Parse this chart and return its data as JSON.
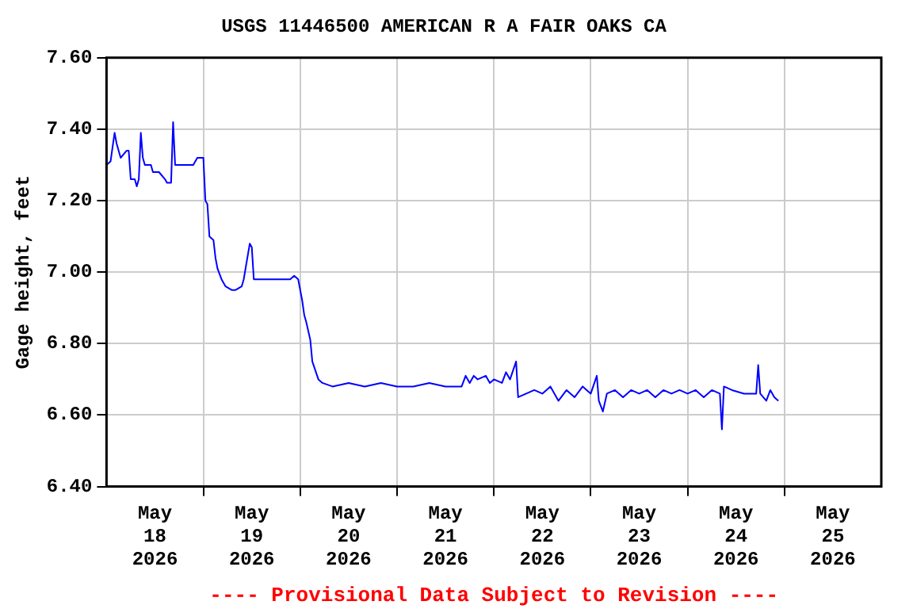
{
  "chart_data": {
    "type": "line",
    "title": "USGS 11446500 AMERICAN R A FAIR OAKS CA",
    "ylabel": "Gage height, feet",
    "annotations": [
      "---- Provisional Data Subject to Revision ----"
    ],
    "x": [
      "2026-05-18T00:00",
      "2026-05-18T01:00",
      "2026-05-18T02:00",
      "2026-05-18T02:30",
      "2026-05-18T03:30",
      "2026-05-18T05:00",
      "2026-05-18T05:30",
      "2026-05-18T06:00",
      "2026-05-18T07:00",
      "2026-05-18T07:30",
      "2026-05-18T08:00",
      "2026-05-18T08:30",
      "2026-05-18T09:00",
      "2026-05-18T09:30",
      "2026-05-18T11:00",
      "2026-05-18T11:30",
      "2026-05-18T13:00",
      "2026-05-18T14:30",
      "2026-05-18T15:00",
      "2026-05-18T16:00",
      "2026-05-18T16:30",
      "2026-05-18T17:00",
      "2026-05-18T18:00",
      "2026-05-18T21:30",
      "2026-05-18T22:30",
      "2026-05-19T00:00",
      "2026-05-19T00:30",
      "2026-05-19T01:00",
      "2026-05-19T01:30",
      "2026-05-19T02:30",
      "2026-05-19T03:00",
      "2026-05-19T03:30",
      "2026-05-19T04:30",
      "2026-05-19T05:30",
      "2026-05-19T07:00",
      "2026-05-19T08:00",
      "2026-05-19T09:30",
      "2026-05-19T10:00",
      "2026-05-19T11:30",
      "2026-05-19T12:00",
      "2026-05-19T12:30",
      "2026-05-19T21:30",
      "2026-05-19T22:30",
      "2026-05-19T23:30",
      "2026-05-20T00:30",
      "2026-05-20T01:00",
      "2026-05-20T01:30",
      "2026-05-20T02:30",
      "2026-05-20T03:00",
      "2026-05-20T04:30",
      "2026-05-20T05:30",
      "2026-05-20T08:00",
      "2026-05-20T12:00",
      "2026-05-20T16:00",
      "2026-05-20T20:00",
      "2026-05-21T00:00",
      "2026-05-21T04:00",
      "2026-05-21T08:00",
      "2026-05-21T12:00",
      "2026-05-21T16:00",
      "2026-05-21T17:00",
      "2026-05-21T18:00",
      "2026-05-21T19:00",
      "2026-05-21T20:00",
      "2026-05-21T22:00",
      "2026-05-21T23:00",
      "2026-05-22T00:00",
      "2026-05-22T02:00",
      "2026-05-22T03:00",
      "2026-05-22T04:00",
      "2026-05-22T05:30",
      "2026-05-22T06:00",
      "2026-05-22T08:00",
      "2026-05-22T10:00",
      "2026-05-22T12:00",
      "2026-05-22T14:00",
      "2026-05-22T16:00",
      "2026-05-22T18:00",
      "2026-05-22T20:00",
      "2026-05-22T22:00",
      "2026-05-23T00:00",
      "2026-05-23T01:30",
      "2026-05-23T02:00",
      "2026-05-23T03:00",
      "2026-05-23T04:00",
      "2026-05-23T06:00",
      "2026-05-23T08:00",
      "2026-05-23T10:00",
      "2026-05-23T12:00",
      "2026-05-23T14:00",
      "2026-05-23T16:00",
      "2026-05-23T18:00",
      "2026-05-23T20:00",
      "2026-05-23T22:00",
      "2026-05-24T00:00",
      "2026-05-24T02:00",
      "2026-05-24T04:00",
      "2026-05-24T06:00",
      "2026-05-24T08:00",
      "2026-05-24T08:30",
      "2026-05-24T09:00",
      "2026-05-24T11:00",
      "2026-05-24T14:00",
      "2026-05-24T17:00",
      "2026-05-24T17:30",
      "2026-05-24T18:00",
      "2026-05-24T19:30",
      "2026-05-24T20:30",
      "2026-05-24T21:30",
      "2026-05-24T22:30"
    ],
    "series": [
      {
        "color": "#0000ff",
        "values": [
          7.3,
          7.31,
          7.39,
          7.36,
          7.32,
          7.34,
          7.34,
          7.26,
          7.26,
          7.24,
          7.26,
          7.39,
          7.32,
          7.3,
          7.3,
          7.28,
          7.28,
          7.26,
          7.25,
          7.25,
          7.42,
          7.3,
          7.3,
          7.3,
          7.32,
          7.32,
          7.2,
          7.19,
          7.1,
          7.09,
          7.04,
          7.01,
          6.98,
          6.96,
          6.95,
          6.95,
          6.96,
          6.98,
          7.08,
          7.07,
          6.98,
          6.98,
          6.99,
          6.98,
          6.92,
          6.88,
          6.86,
          6.81,
          6.75,
          6.7,
          6.69,
          6.68,
          6.69,
          6.68,
          6.69,
          6.68,
          6.68,
          6.69,
          6.68,
          6.68,
          6.71,
          6.69,
          6.71,
          6.7,
          6.71,
          6.69,
          6.7,
          6.69,
          6.72,
          6.7,
          6.75,
          6.65,
          6.66,
          6.67,
          6.66,
          6.68,
          6.64,
          6.67,
          6.65,
          6.68,
          6.66,
          6.71,
          6.64,
          6.61,
          6.66,
          6.67,
          6.65,
          6.67,
          6.66,
          6.67,
          6.65,
          6.67,
          6.66,
          6.67,
          6.66,
          6.67,
          6.65,
          6.67,
          6.66,
          6.56,
          6.68,
          6.67,
          6.66,
          6.66,
          6.74,
          6.66,
          6.64,
          6.67,
          6.65,
          6.64
        ]
      }
    ],
    "xlim": [
      "2026-05-18T00:00",
      "2026-05-26T00:00"
    ],
    "xticks": [
      {
        "value": "2026-05-18T12:00",
        "label": "May 18 2026"
      },
      {
        "value": "2026-05-19T00:00",
        "label": null
      },
      {
        "value": "2026-05-19T12:00",
        "label": "May 19 2026"
      },
      {
        "value": "2026-05-20T00:00",
        "label": null
      },
      {
        "value": "2026-05-20T12:00",
        "label": "May 20 2026"
      },
      {
        "value": "2026-05-21T00:00",
        "label": null
      },
      {
        "value": "2026-05-21T12:00",
        "label": "May 21 2026"
      },
      {
        "value": "2026-05-22T00:00",
        "label": null
      },
      {
        "value": "2026-05-22T12:00",
        "label": "May 22 2026"
      },
      {
        "value": "2026-05-23T00:00",
        "label": null
      },
      {
        "value": "2026-05-23T12:00",
        "label": "May 23 2026"
      },
      {
        "value": "2026-05-24T00:00",
        "label": null
      },
      {
        "value": "2026-05-24T12:00",
        "label": "May 24 2026"
      },
      {
        "value": "2026-05-25T00:00",
        "label": null
      },
      {
        "value": "2026-05-25T12:00",
        "label": "May 25 2026"
      }
    ],
    "ylim": [
      6.4,
      7.6
    ],
    "yticks": [
      {
        "value": 6.4,
        "label": "6.40"
      },
      {
        "value": 6.6,
        "label": "6.60"
      },
      {
        "value": 6.8,
        "label": "6.80"
      },
      {
        "value": 7.0,
        "label": "7.00"
      },
      {
        "value": 7.2,
        "label": "7.20"
      },
      {
        "value": 7.4,
        "label": "7.40"
      },
      {
        "value": 7.6,
        "label": "7.60"
      }
    ],
    "grid": true,
    "legend": false,
    "marker": "none",
    "line_style": "solid"
  }
}
